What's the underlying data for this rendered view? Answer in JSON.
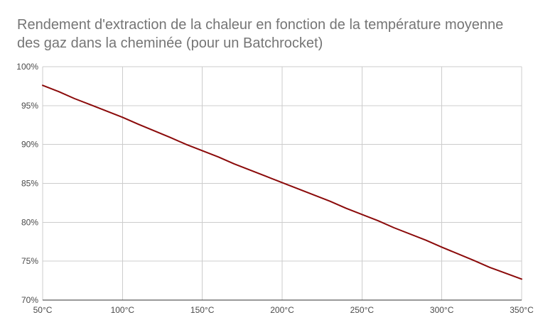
{
  "chart_data": {
    "type": "line",
    "title": "Rendement d'extraction de la chaleur en fonction de la température moyenne des gaz dans la cheminée (pour un Batchrocket)",
    "xlabel": "",
    "ylabel": "",
    "xlim": [
      50,
      350
    ],
    "ylim": [
      70,
      100
    ],
    "x_ticks": [
      50,
      100,
      150,
      200,
      250,
      300,
      350
    ],
    "x_tick_labels": [
      "50°C",
      "100°C",
      "150°C",
      "200°C",
      "250°C",
      "300°C",
      "350°C"
    ],
    "y_ticks": [
      70,
      75,
      80,
      85,
      90,
      95,
      100
    ],
    "y_tick_labels": [
      "70%",
      "75%",
      "80%",
      "85%",
      "90%",
      "95%",
      "100%"
    ],
    "grid": true,
    "legend": "none",
    "series": [
      {
        "color": "#8b0a0a",
        "x": [
          50,
          60,
          70,
          80,
          100,
          110,
          130,
          140,
          160,
          170,
          190,
          200,
          230,
          240,
          260,
          270,
          290,
          300,
          320,
          330,
          350
        ],
        "y": [
          97.6,
          96.8,
          95.9,
          95.1,
          93.5,
          92.6,
          90.9,
          90.0,
          88.4,
          87.5,
          85.9,
          85.1,
          82.7,
          81.8,
          80.2,
          79.3,
          77.7,
          76.8,
          75.1,
          74.2,
          72.7
        ]
      }
    ]
  }
}
